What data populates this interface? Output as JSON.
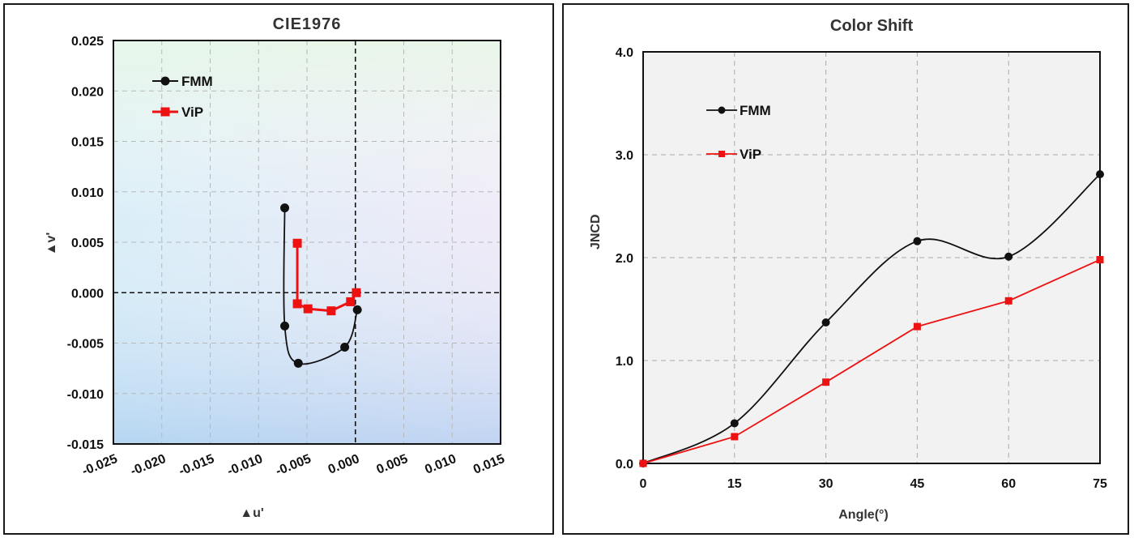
{
  "chart_data": [
    {
      "type": "scatter",
      "title": "CIE1976",
      "xlabel": "▲u'",
      "ylabel": "▲v'",
      "xlim": [
        -0.025,
        0.015
      ],
      "ylim": [
        -0.015,
        0.025
      ],
      "x_ticks": [
        "-0.025",
        "-0.020",
        "-0.015",
        "-0.010",
        "-0.005",
        "0.000",
        "0.005",
        "0.010",
        "0.015"
      ],
      "y_ticks": [
        "0.025",
        "0.020",
        "0.015",
        "0.010",
        "0.005",
        "0.000",
        "-0.005",
        "-0.010",
        "-0.015"
      ],
      "x_tick_values": [
        -0.025,
        -0.02,
        -0.015,
        -0.01,
        -0.005,
        0.0,
        0.005,
        0.01,
        0.015
      ],
      "y_tick_values": [
        0.025,
        0.02,
        0.015,
        0.01,
        0.005,
        0.0,
        -0.005,
        -0.01,
        -0.015
      ],
      "grid": true,
      "legend_position": "top-left",
      "series": [
        {
          "name": "FMM",
          "color": "#111111",
          "marker": "circle",
          "points": [
            [
              -0.0073,
              0.0084
            ],
            [
              -0.0073,
              -0.0033
            ],
            [
              -0.0059,
              -0.007
            ],
            [
              -0.0011,
              -0.0054
            ],
            [
              0.0002,
              -0.0017
            ]
          ]
        },
        {
          "name": "ViP",
          "color": "#ee1111",
          "marker": "square",
          "points": [
            [
              -0.006,
              0.0049
            ],
            [
              -0.006,
              -0.0011
            ],
            [
              -0.0049,
              -0.0016
            ],
            [
              -0.0025,
              -0.0018
            ],
            [
              -0.0005,
              -0.0009
            ],
            [
              0.0001,
              0.0
            ]
          ]
        }
      ]
    },
    {
      "type": "line",
      "title": "Color Shift",
      "xlabel": "Angle(°)",
      "ylabel": "JNCD",
      "xlim": [
        0,
        75
      ],
      "ylim": [
        0,
        4
      ],
      "x_ticks": [
        "0",
        "15",
        "30",
        "45",
        "60",
        "75"
      ],
      "y_ticks": [
        "4.0",
        "3.0",
        "2.0",
        "1.0",
        "0.0"
      ],
      "x_tick_values": [
        0,
        15,
        30,
        45,
        60,
        75
      ],
      "y_tick_values": [
        4,
        3,
        2,
        1,
        0
      ],
      "grid": true,
      "legend_position": "top-left",
      "x": [
        0,
        15,
        30,
        45,
        60,
        75
      ],
      "series": [
        {
          "name": "FMM",
          "color": "#111111",
          "marker": "circle",
          "values": [
            0.0,
            0.39,
            1.37,
            2.16,
            2.01,
            2.81
          ]
        },
        {
          "name": "ViP",
          "color": "#ee1111",
          "marker": "square",
          "values": [
            0.0,
            0.26,
            0.79,
            1.33,
            1.58,
            1.98
          ]
        }
      ]
    }
  ]
}
